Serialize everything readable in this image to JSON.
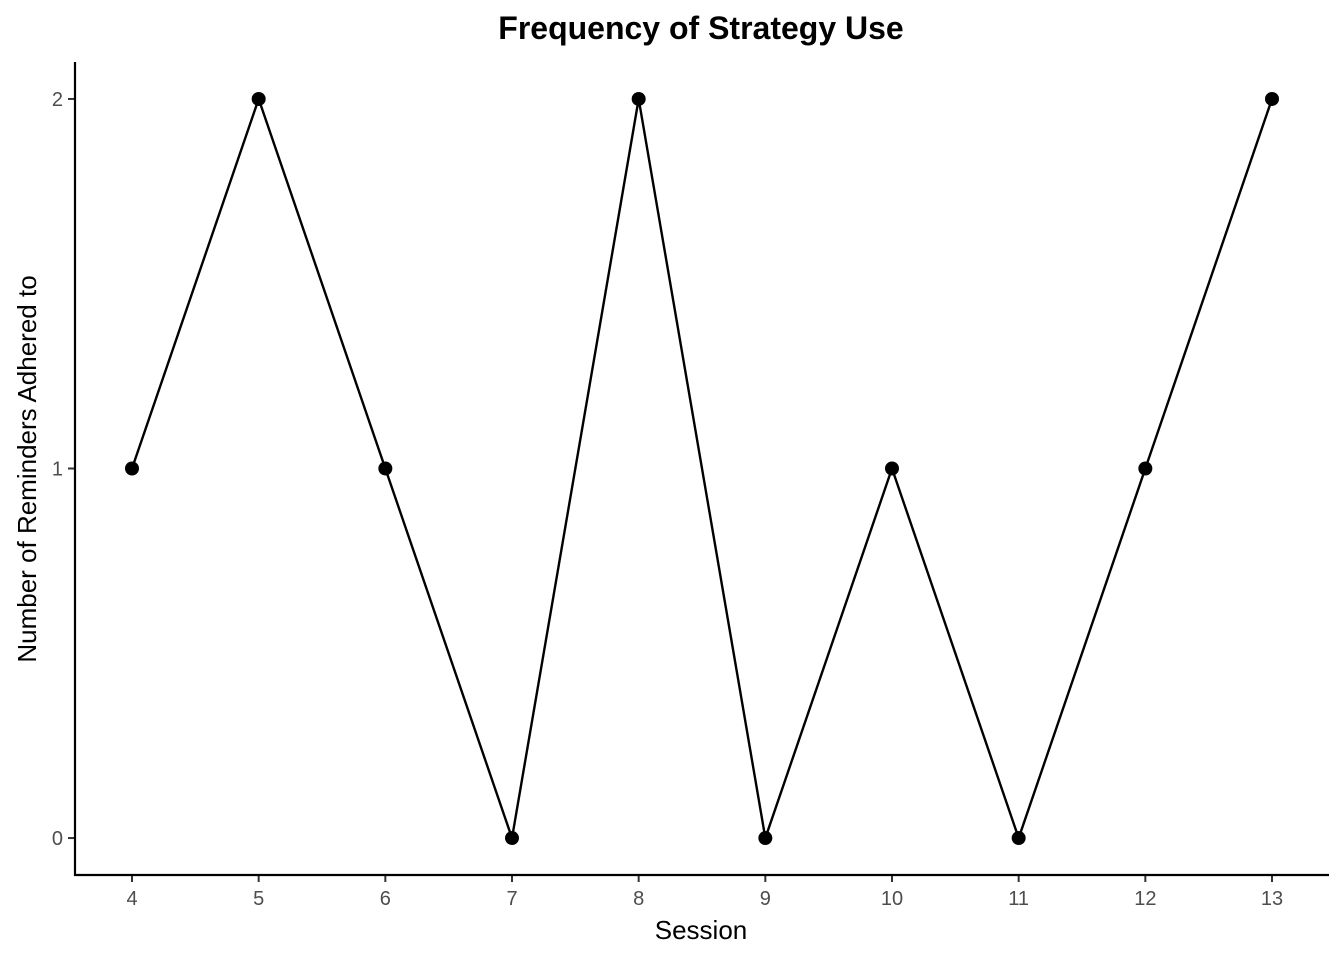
{
  "chart_data": {
    "type": "line",
    "title": "Frequency of Strategy Use",
    "xlabel": "Session",
    "ylabel": "Number of Reminders Adhered to",
    "x": [
      4,
      5,
      6,
      7,
      8,
      9,
      10,
      11,
      12,
      13
    ],
    "values": [
      1,
      2,
      1,
      0,
      2,
      0,
      1,
      0,
      1,
      2
    ],
    "xticks": [
      "4",
      "5",
      "6",
      "7",
      "8",
      "9",
      "10",
      "11",
      "12",
      "13"
    ],
    "yticks": [
      "0",
      "1",
      "2"
    ],
    "xlim": [
      3.55,
      13.45
    ],
    "ylim": [
      -0.1,
      2.1
    ],
    "grid": false,
    "markers": true,
    "colors": {
      "line": "#000000",
      "points": "#000000",
      "tick_labels": "#4d4d4d"
    }
  }
}
